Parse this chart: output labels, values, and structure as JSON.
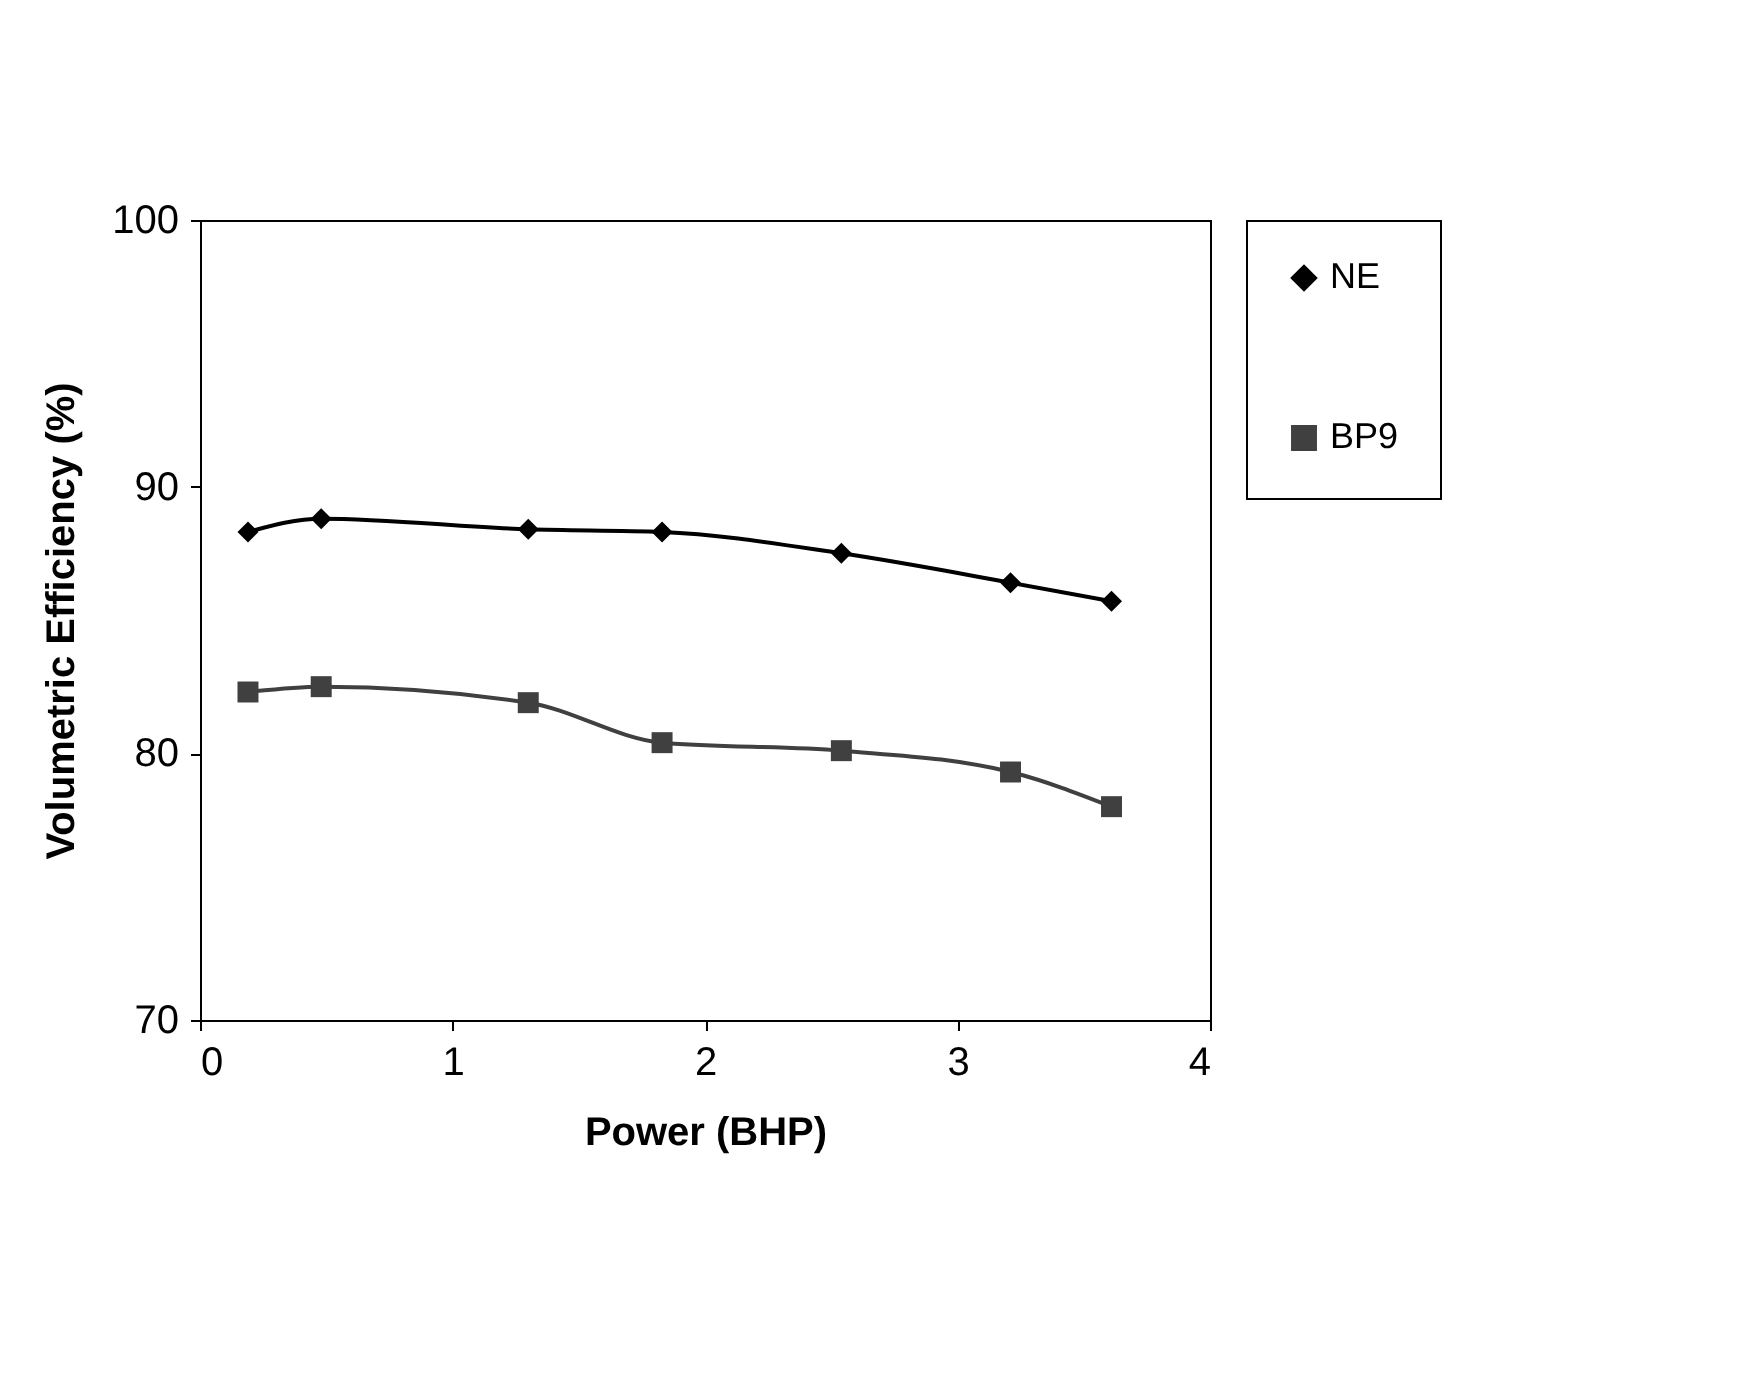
{
  "chart_data": {
    "type": "line",
    "xlabel": "Power (BHP)",
    "ylabel": "Volumetric Efficiency (%)",
    "xlim": [
      0,
      4
    ],
    "xticks": [
      0,
      1,
      2,
      3,
      4
    ],
    "ylim": [
      70,
      100
    ],
    "yticks": [
      70,
      80,
      90,
      100
    ],
    "x": [
      0.19,
      0.48,
      1.3,
      1.83,
      2.54,
      3.21,
      3.61
    ],
    "series": [
      {
        "name": "NE",
        "color": "#000000",
        "marker": "diamond",
        "values": [
          88.3,
          88.8,
          88.4,
          88.3,
          87.5,
          86.4,
          85.7
        ]
      },
      {
        "name": "BP9",
        "color": "#404040",
        "marker": "square",
        "values": [
          82.3,
          82.5,
          81.9,
          80.4,
          80.1,
          79.3,
          78.0
        ]
      }
    ],
    "legend": "right",
    "grid": false,
    "line_style": "solid"
  }
}
